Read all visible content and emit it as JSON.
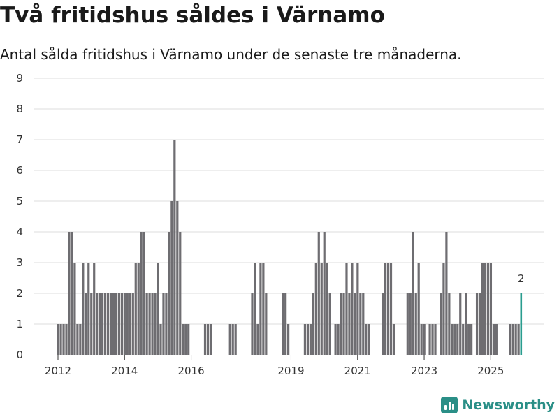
{
  "header": {
    "title": "Två fritidshus såldes i Värnamo",
    "subtitle": "Antal sålda fritidshus i Värnamo under de senaste tre månaderna."
  },
  "brand": {
    "name": "Newsworthy",
    "icon": "newsworthy-logo-icon",
    "color": "#2a8f87"
  },
  "chart_data": {
    "type": "bar",
    "title": "Två fritidshus såldes i Värnamo",
    "subtitle": "Antal sålda fritidshus i Värnamo under de senaste tre månaderna.",
    "xlabel": "",
    "ylabel": "",
    "ylim": [
      0,
      9
    ],
    "yticks": [
      0,
      1,
      2,
      3,
      4,
      5,
      6,
      7,
      8,
      9
    ],
    "xticks": [
      "2012",
      "2014",
      "2016",
      "2019",
      "2021",
      "2023",
      "2025"
    ],
    "xtick_months": [
      0,
      24,
      48,
      84,
      108,
      132,
      156
    ],
    "start_month": "2012-01",
    "grid": true,
    "bar_color": "#6e6d71",
    "highlight_color": "#2a9d8f",
    "highlight_label": "2",
    "values": [
      1,
      1,
      1,
      1,
      4,
      4,
      3,
      1,
      1,
      3,
      2,
      3,
      2,
      3,
      2,
      2,
      2,
      2,
      2,
      2,
      2,
      2,
      2,
      2,
      2,
      2,
      2,
      2,
      3,
      3,
      4,
      4,
      2,
      2,
      2,
      2,
      3,
      1,
      2,
      2,
      4,
      5,
      7,
      5,
      4,
      1,
      1,
      1,
      0,
      0,
      0,
      0,
      0,
      1,
      1,
      1,
      0,
      0,
      0,
      0,
      0,
      0,
      1,
      1,
      1,
      0,
      0,
      0,
      0,
      0,
      2,
      3,
      1,
      3,
      3,
      2,
      0,
      0,
      0,
      0,
      0,
      2,
      2,
      1,
      0,
      0,
      0,
      0,
      0,
      1,
      1,
      1,
      2,
      3,
      4,
      3,
      4,
      3,
      2,
      0,
      1,
      1,
      2,
      2,
      3,
      2,
      3,
      2,
      3,
      2,
      2,
      1,
      1,
      0,
      0,
      0,
      0,
      2,
      3,
      3,
      3,
      1,
      0,
      0,
      0,
      0,
      2,
      2,
      4,
      2,
      3,
      1,
      1,
      0,
      1,
      1,
      1,
      0,
      2,
      3,
      4,
      2,
      1,
      1,
      1,
      2,
      1,
      2,
      1,
      1,
      0,
      2,
      2,
      3,
      3,
      3,
      3,
      1,
      1,
      0,
      0,
      0,
      0,
      1,
      1,
      1,
      1,
      2
    ]
  }
}
